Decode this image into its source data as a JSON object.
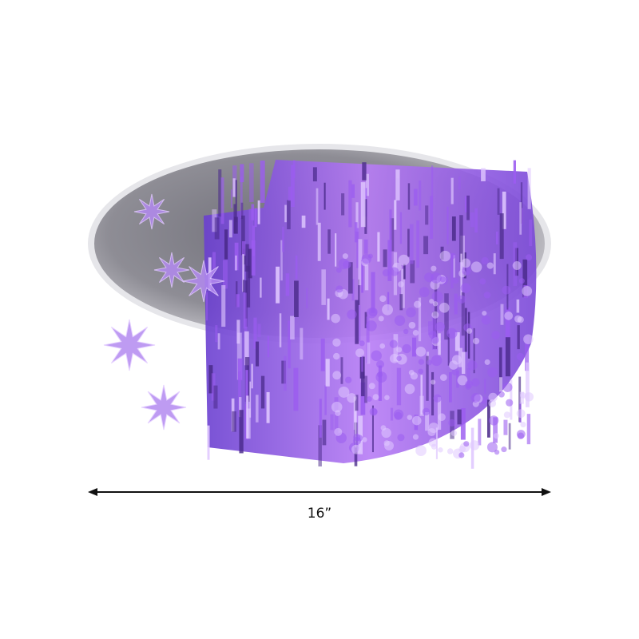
{
  "product": {
    "dimension_label": "16”",
    "colors": {
      "plate": "#8d8c92",
      "crystal": "#9b5cf0",
      "crystal_highlight": "#e0c8ff",
      "crystal_dark": "#4a2a8a"
    }
  }
}
